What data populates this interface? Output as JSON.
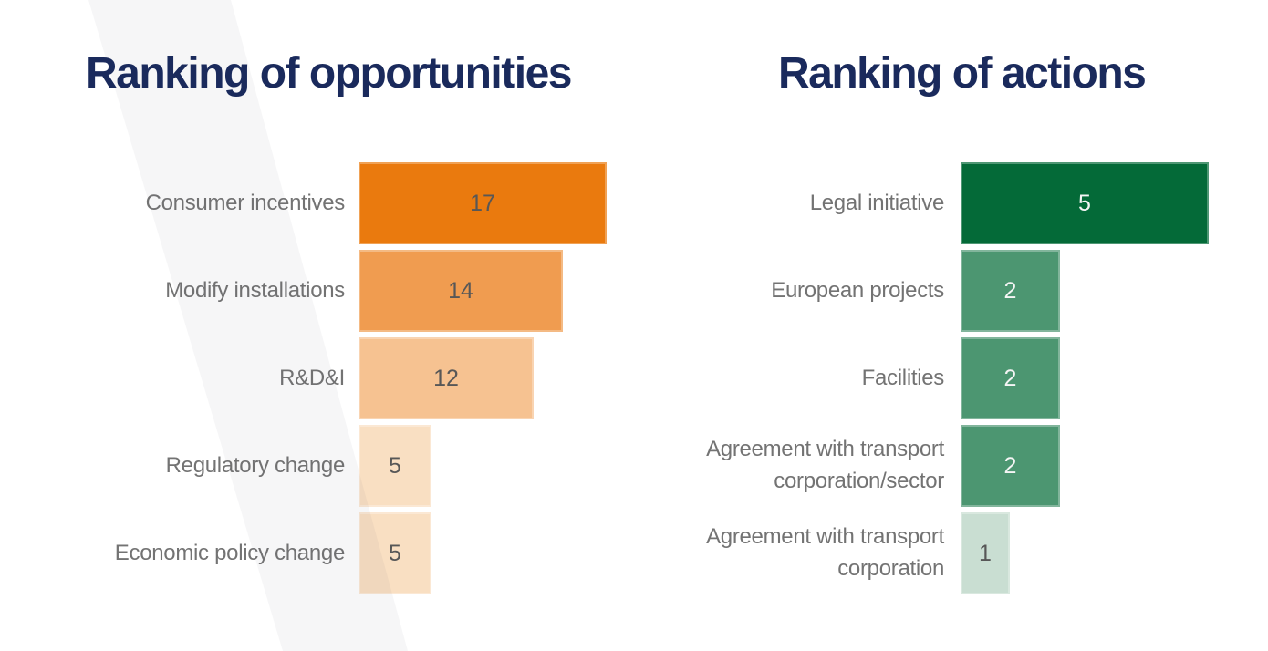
{
  "page": {
    "background": "#FFFFFF",
    "title_color": "#1A2A5C",
    "category_label_color": "#737373",
    "band_color": "rgba(100,100,118,0.055)"
  },
  "chart_data": [
    {
      "type": "bar",
      "orientation": "horizontal",
      "title": "Ranking of opportunities",
      "categories": [
        "Consumer incentives",
        "Modify installations",
        "R&D&I",
        "Regulatory change",
        "Economic policy change"
      ],
      "values": [
        17,
        14,
        12,
        5,
        5
      ],
      "bar_colors": [
        "#EA7A0E",
        "#F09C50",
        "#F6C291",
        "#F9DFC2",
        "#F9DFC2"
      ],
      "value_label_colors": [
        "#575757",
        "#575757",
        "#575757",
        "#575757",
        "#575757"
      ],
      "value_label_position": "inside-center",
      "axis": "hidden",
      "grid": false,
      "legend": false,
      "xlim": [
        0,
        17
      ],
      "xlabel": "",
      "ylabel": ""
    },
    {
      "type": "bar",
      "orientation": "horizontal",
      "title": "Ranking of actions",
      "categories": [
        "Legal initiative",
        "European projects",
        "Facilities",
        "Agreement with transport corporation/sector",
        "Agreement with transport corporation"
      ],
      "values": [
        5,
        2,
        2,
        2,
        1
      ],
      "bar_colors": [
        "#046A38",
        "#4C9671",
        "#4C9671",
        "#4C9671",
        "#C9DED2"
      ],
      "value_label_colors": [
        "#F5F5F5",
        "#F5F5F5",
        "#F5F5F5",
        "#F5F5F5",
        "#575757"
      ],
      "value_label_position": "inside-center",
      "axis": "hidden",
      "grid": false,
      "legend": false,
      "xlim": [
        0,
        5
      ],
      "xlabel": "",
      "ylabel": ""
    }
  ]
}
